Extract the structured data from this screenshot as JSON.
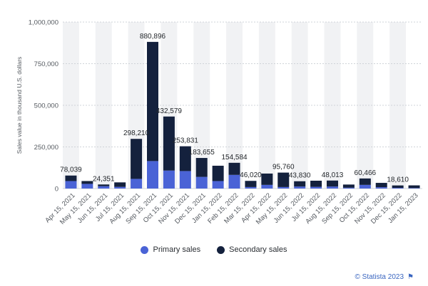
{
  "chart_data": {
    "type": "bar",
    "stacked": true,
    "ylabel": "Sales value in thousand U.S. dollars",
    "ylim": [
      0,
      1000000
    ],
    "yticks": [
      0,
      250000,
      500000,
      750000,
      1000000
    ],
    "ytick_labels": [
      "0",
      "250,000",
      "500,000",
      "750,000",
      "1,000,000"
    ],
    "grid": true,
    "legend_position": "bottom",
    "categories": [
      "Apr 15, 2021",
      "May 15, 2021",
      "Jun 15, 2021",
      "Jul 15, 2021",
      "Aug 15, 2021",
      "Sep 15, 2021",
      "Oct 15, 2021",
      "Nov 15, 2021",
      "Dec 15, 2021",
      "Jan 15, 2022",
      "Feb 15, 2022",
      "Mar 15, 2022",
      "Apr 15, 2022",
      "May 15, 2022",
      "Jun 15, 2022",
      "Jul 15, 2022",
      "Aug 15, 2022",
      "Sep 15, 2022",
      "Oct 15, 2022",
      "Nov 15, 2022",
      "Dec 15, 2022",
      "Jan 15, 2023"
    ],
    "series": [
      {
        "name": "Primary sales",
        "color": "#4a63d6",
        "values": [
          45000,
          28000,
          14000,
          10000,
          58000,
          165000,
          108000,
          105000,
          70000,
          45000,
          82000,
          9000,
          22000,
          9000,
          12000,
          10000,
          12000,
          5000,
          22000,
          8000,
          4000,
          3000
        ]
      },
      {
        "name": "Secondary sales",
        "color": "#14213d",
        "values": [
          33039,
          17000,
          10351,
          27000,
          240210,
          715896,
          324579,
          148831,
          113655,
          92000,
          72584,
          37020,
          68000,
          86760,
          31830,
          37000,
          36013,
          19000,
          38466,
          26000,
          14610,
          16000
        ]
      }
    ],
    "labels": [
      "78,039",
      "",
      "24,351",
      "",
      "298,210",
      "880,896",
      "432,579",
      "253,831",
      "183,655",
      "",
      "154,584",
      "46,020",
      "",
      "95,760",
      "43,830",
      "",
      "48,013",
      "",
      "60,466",
      "",
      "18,610",
      ""
    ]
  },
  "credit": "© Statista 2023",
  "colors": {
    "primary": "#4a63d6",
    "secondary": "#14213d",
    "band": "#f1f2f4",
    "grid": "#cfd3d8"
  }
}
